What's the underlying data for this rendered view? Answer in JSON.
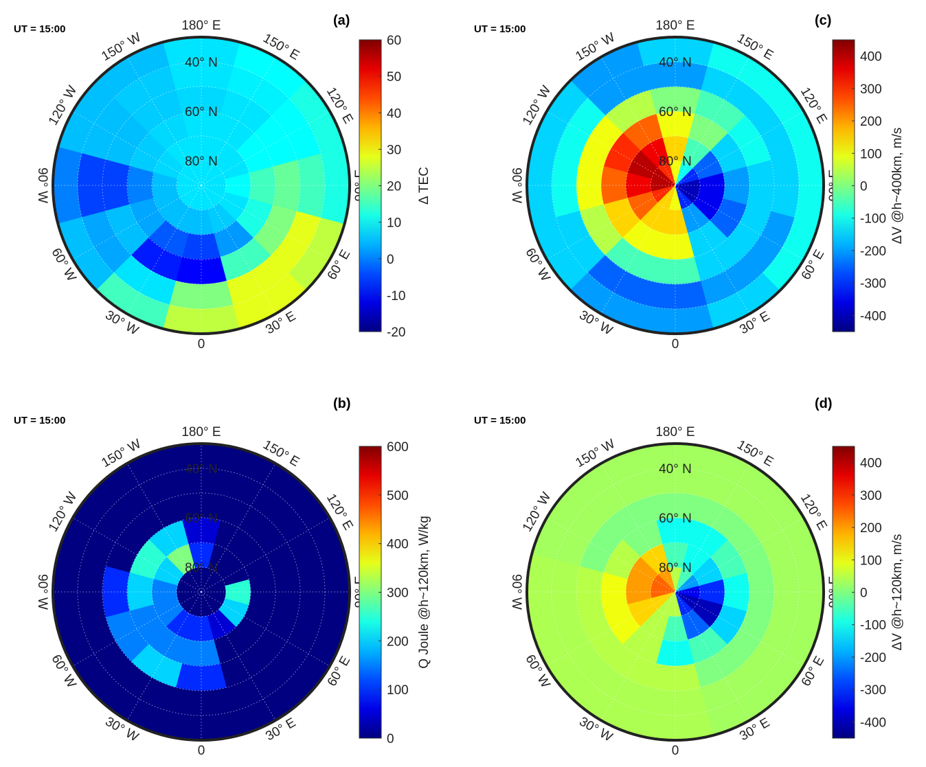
{
  "chart_data": [
    {
      "type": "heatmap",
      "panel_label": "(a)",
      "ut_label": "UT = 15:00",
      "projection": "polar north",
      "lat_rings": [
        85,
        75,
        65,
        55,
        45,
        35
      ],
      "lon_sectors_east": [
        0,
        30,
        60,
        90,
        120,
        150,
        180,
        210,
        240,
        270,
        300,
        330
      ],
      "values": [
        [
          8,
          8,
          8,
          8,
          8,
          8,
          8,
          8,
          8,
          8,
          8,
          8
        ],
        [
          5,
          6,
          8,
          10,
          8,
          8,
          8,
          8,
          7,
          5,
          5,
          5
        ],
        [
          -5,
          2,
          12,
          15,
          10,
          8,
          8,
          7,
          6,
          0,
          3,
          -3
        ],
        [
          -10,
          15,
          20,
          18,
          10,
          8,
          7,
          6,
          5,
          -5,
          5,
          -8
        ],
        [
          20,
          28,
          28,
          15,
          10,
          9,
          8,
          6,
          5,
          -5,
          3,
          8
        ],
        [
          25,
          28,
          25,
          12,
          12,
          10,
          8,
          5,
          5,
          0,
          5,
          15
        ]
      ],
      "colorbar": {
        "label": "Δ TEC",
        "range": [
          -20,
          60
        ],
        "ticks": [
          "60",
          "50",
          "40",
          "30",
          "20",
          "10",
          "0",
          "-10",
          "-20"
        ],
        "tick_values": [
          60,
          50,
          40,
          30,
          20,
          10,
          0,
          -10,
          -20
        ]
      }
    },
    {
      "type": "heatmap",
      "panel_label": "(c)",
      "ut_label": "UT = 15:00",
      "projection": "polar north",
      "lat_rings": [
        85,
        75,
        65,
        55,
        45,
        35
      ],
      "lon_sectors_east": [
        0,
        30,
        60,
        90,
        120,
        150,
        180,
        210,
        240,
        270,
        300,
        330
      ],
      "values": [
        [
          100,
          -300,
          -400,
          -400,
          -300,
          -100,
          100,
          300,
          400,
          400,
          300,
          150
        ],
        [
          150,
          -200,
          -350,
          -350,
          -250,
          -50,
          150,
          350,
          400,
          350,
          250,
          150
        ],
        [
          100,
          -150,
          -250,
          -200,
          -150,
          0,
          100,
          250,
          300,
          250,
          150,
          100
        ],
        [
          -50,
          -150,
          -150,
          -150,
          -100,
          -50,
          0,
          50,
          100,
          100,
          50,
          -50
        ],
        [
          -250,
          -200,
          -200,
          -150,
          -150,
          -150,
          -200,
          -200,
          -100,
          -100,
          -150,
          -250
        ],
        [
          -200,
          -150,
          -100,
          -100,
          -100,
          -100,
          -150,
          -200,
          -150,
          -150,
          -150,
          -200
        ]
      ],
      "colorbar": {
        "label": "ΔV @h~400km, m/s",
        "range": [
          -450,
          450
        ],
        "ticks": [
          "400",
          "300",
          "200",
          "100",
          "0",
          "-100",
          "-200",
          "-300",
          "-400"
        ],
        "tick_values": [
          400,
          300,
          200,
          100,
          0,
          -100,
          -200,
          -300,
          -400
        ]
      }
    },
    {
      "type": "heatmap",
      "panel_label": "(b)",
      "ut_label": "UT = 15:00",
      "projection": "polar north",
      "lat_rings": [
        85,
        75,
        65,
        55,
        45,
        35
      ],
      "lon_sectors_east": [
        0,
        30,
        60,
        90,
        120,
        150,
        180,
        210,
        240,
        270,
        300,
        330
      ],
      "values": [
        [
          0,
          0,
          0,
          0,
          0,
          0,
          0,
          0,
          0,
          0,
          0,
          0
        ],
        [
          100,
          50,
          200,
          250,
          0,
          0,
          100,
          300,
          200,
          150,
          150,
          100
        ],
        [
          150,
          0,
          0,
          0,
          0,
          0,
          50,
          200,
          250,
          200,
          150,
          150
        ],
        [
          100,
          0,
          0,
          0,
          0,
          0,
          0,
          0,
          0,
          100,
          150,
          200
        ],
        [
          0,
          0,
          0,
          0,
          0,
          0,
          0,
          0,
          0,
          0,
          0,
          0
        ],
        [
          0,
          0,
          0,
          0,
          0,
          0,
          0,
          0,
          0,
          0,
          0,
          0
        ]
      ],
      "colorbar": {
        "label": "Q Joule @h~120km, W/kg",
        "range": [
          0,
          600
        ],
        "ticks": [
          "600",
          "500",
          "400",
          "300",
          "200",
          "100",
          "0"
        ],
        "tick_values": [
          600,
          500,
          400,
          300,
          200,
          100,
          0
        ]
      }
    },
    {
      "type": "heatmap",
      "panel_label": "(d)",
      "ut_label": "UT = 15:00",
      "projection": "polar north",
      "lat_rings": [
        85,
        75,
        65,
        55,
        45,
        35
      ],
      "lon_sectors_east": [
        0,
        30,
        60,
        90,
        120,
        150,
        180,
        210,
        240,
        270,
        300,
        330
      ],
      "values": [
        [
          50,
          -300,
          -400,
          -350,
          -200,
          -50,
          50,
          200,
          250,
          250,
          150,
          50
        ],
        [
          -50,
          -250,
          -400,
          -300,
          -150,
          -100,
          -50,
          150,
          200,
          200,
          150,
          50
        ],
        [
          -100,
          -50,
          -150,
          -100,
          -50,
          -100,
          -100,
          0,
          50,
          100,
          100,
          50
        ],
        [
          50,
          0,
          0,
          0,
          0,
          0,
          0,
          0,
          0,
          50,
          50,
          50
        ],
        [
          40,
          30,
          30,
          30,
          30,
          30,
          30,
          30,
          30,
          40,
          40,
          40
        ],
        [
          40,
          30,
          30,
          30,
          30,
          30,
          30,
          30,
          30,
          40,
          40,
          40
        ]
      ],
      "colorbar": {
        "label": "ΔV @h~120km, m/s",
        "range": [
          -450,
          450
        ],
        "ticks": [
          "400",
          "300",
          "200",
          "100",
          "0",
          "-100",
          "-200",
          "-300",
          "-400"
        ],
        "tick_values": [
          400,
          300,
          200,
          100,
          0,
          -100,
          -200,
          -300,
          -400
        ]
      }
    }
  ],
  "lon_labels": [
    {
      "lon": 180,
      "text": "180° E"
    },
    {
      "lon": 150,
      "text": "150° E"
    },
    {
      "lon": 120,
      "text": "120° E"
    },
    {
      "lon": 90,
      "text": "90° E"
    },
    {
      "lon": 60,
      "text": "60° E"
    },
    {
      "lon": 30,
      "text": "30° E"
    },
    {
      "lon": 0,
      "text": "0"
    },
    {
      "lon": -30,
      "text": "30° W"
    },
    {
      "lon": -60,
      "text": "60° W"
    },
    {
      "lon": -90,
      "text": "90° W"
    },
    {
      "lon": -120,
      "text": "120° W"
    },
    {
      "lon": -150,
      "text": "150° W"
    }
  ],
  "lat_labels": [
    {
      "lat": 40,
      "text": "40° N"
    },
    {
      "lat": 60,
      "text": "60° N"
    },
    {
      "lat": 80,
      "text": "80° N"
    }
  ]
}
